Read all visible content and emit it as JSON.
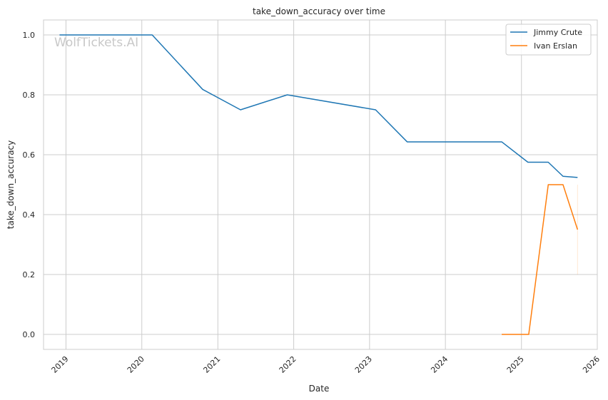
{
  "chart_data": {
    "type": "line",
    "title": "take_down_accuracy over time",
    "xlabel": "Date",
    "ylabel": "take_down_accuracy",
    "watermark": "WolfTickets.AI",
    "x_ticks": [
      "2019",
      "2020",
      "2021",
      "2022",
      "2023",
      "2024",
      "2025",
      "2026"
    ],
    "y_ticks": [
      "0.0",
      "0.2",
      "0.4",
      "0.6",
      "0.8",
      "1.0"
    ],
    "xlim": [
      "2018-09-15",
      "2026-01-01"
    ],
    "ylim": [
      -0.05,
      1.05
    ],
    "grid": true,
    "legend_position": "top-right",
    "colors": {
      "Jimmy Crute": "#1f77b4",
      "Ivan Erslan": "#ff7f0e"
    },
    "series": [
      {
        "name": "Jimmy Crute",
        "points": [
          [
            "2018-12-01",
            1.0
          ],
          [
            "2020-02-20",
            1.0
          ],
          [
            "2020-10-20",
            0.818
          ],
          [
            "2021-04-20",
            0.75
          ],
          [
            "2021-12-01",
            0.8
          ],
          [
            "2023-01-30",
            0.75
          ],
          [
            "2023-07-01",
            0.643
          ],
          [
            "2024-09-28",
            0.643
          ],
          [
            "2025-02-01",
            0.575
          ],
          [
            "2025-05-10",
            0.575
          ],
          [
            "2025-07-20",
            0.528
          ],
          [
            "2025-09-28",
            0.524
          ]
        ]
      },
      {
        "name": "Ivan Erslan",
        "points": [
          [
            "2024-09-28",
            0.0
          ],
          [
            "2025-02-05",
            0.0
          ],
          [
            "2025-05-10",
            0.5
          ],
          [
            "2025-07-20",
            0.5
          ],
          [
            "2025-09-28",
            0.35
          ]
        ],
        "interval": {
          "x": "2025-09-28",
          "low": 0.2,
          "high": 0.5
        }
      }
    ]
  }
}
